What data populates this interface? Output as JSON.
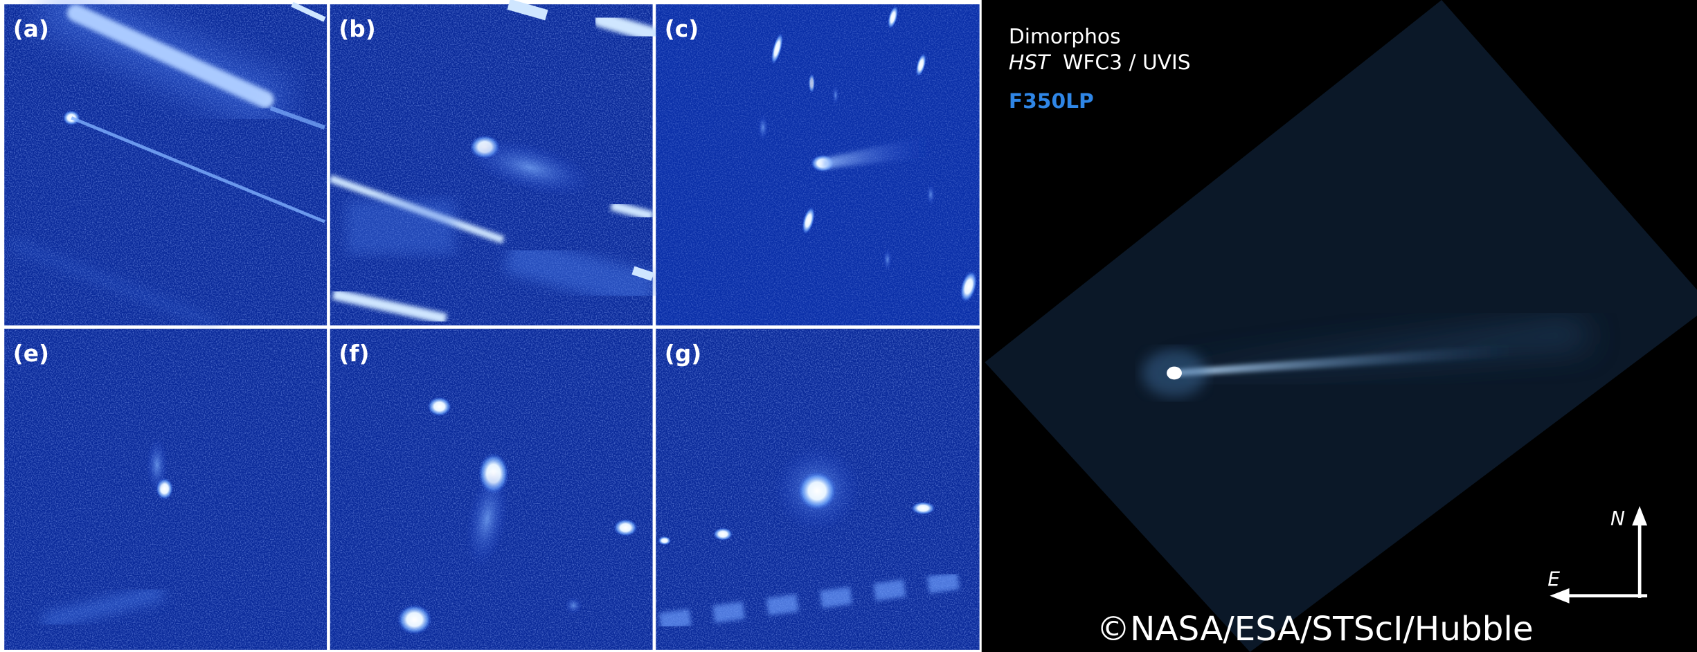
{
  "panels": [
    {
      "label": "(a)"
    },
    {
      "label": "(b)"
    },
    {
      "label": "(c)"
    },
    {
      "label": "(e)"
    },
    {
      "label": "(f)"
    },
    {
      "label": "(g)"
    }
  ],
  "legend": {
    "target": "Dimorphos",
    "telescope": "HST",
    "instrument": "WFC3 / UVIS",
    "filter": "F350LP"
  },
  "compass": {
    "north": "N",
    "east": "E"
  },
  "credit": "©NASA/ESA/STScI/Hubble"
}
